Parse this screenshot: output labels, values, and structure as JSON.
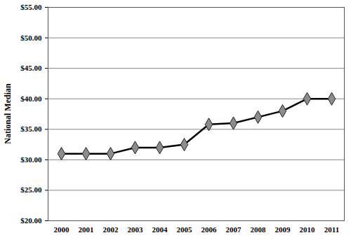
{
  "chart_data": {
    "type": "line",
    "y_label": "National Median",
    "categories": [
      "2000",
      "2001",
      "2002",
      "2003",
      "2004",
      "2005",
      "2006",
      "2007",
      "2008",
      "2009",
      "2010",
      "2011"
    ],
    "values": [
      31,
      31,
      31,
      32,
      32,
      32.5,
      35.8,
      36,
      37,
      38,
      40,
      40
    ],
    "color": "#000000",
    "marker": "diamond",
    "ylim": [
      20,
      55
    ],
    "yticks": [
      {
        "value": 20,
        "label": "$20.00"
      },
      {
        "value": 25,
        "label": "$25.00"
      },
      {
        "value": 30,
        "label": "$30.00"
      },
      {
        "value": 35,
        "label": "$35.00"
      },
      {
        "value": 40,
        "label": "$40.00"
      },
      {
        "value": 45,
        "label": "$45.00"
      },
      {
        "value": 50,
        "label": "$50.00"
      },
      {
        "value": 55,
        "label": "$55.00"
      }
    ],
    "grid": true
  }
}
